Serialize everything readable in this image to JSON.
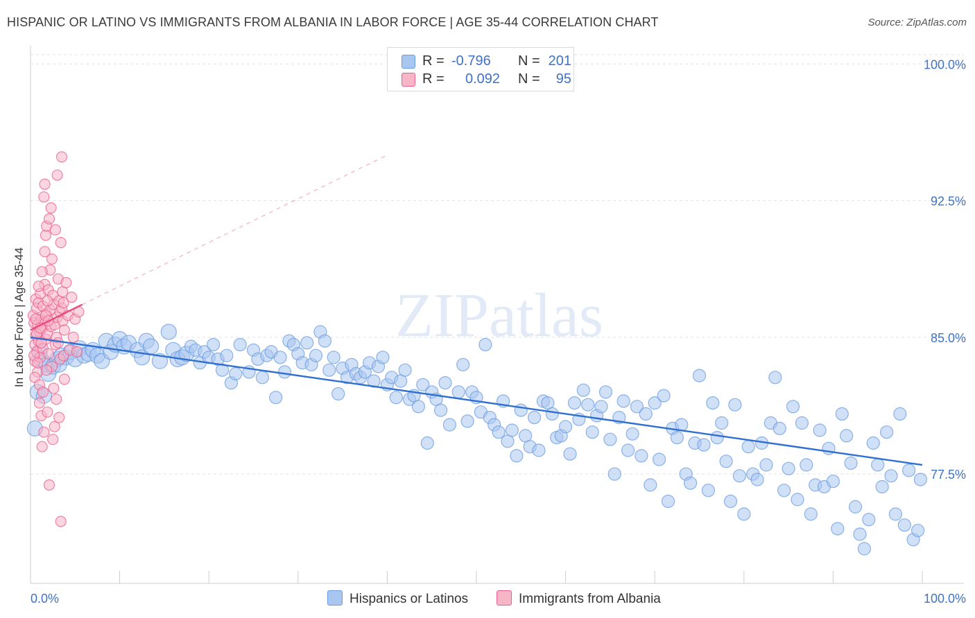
{
  "title": "HISPANIC OR LATINO VS IMMIGRANTS FROM ALBANIA IN LABOR FORCE | AGE 35-44 CORRELATION CHART",
  "source": "Source: ZipAtlas.com",
  "watermark": "ZIPatlas",
  "legend": {
    "rows": [
      {
        "r_label": "R =",
        "r_value": "-0.796",
        "n_label": "N =",
        "n_value": "201",
        "color": "#a9c6f0"
      },
      {
        "r_label": "R =",
        "r_value": "0.092",
        "n_label": "N =",
        "n_value": "95",
        "color": "#f7b5c8"
      }
    ]
  },
  "chart_data": {
    "type": "scatter",
    "xlabel": "",
    "ylabel": "In Labor Force | Age 35-44",
    "x_tick_labels": [
      "0.0%",
      "100.0%"
    ],
    "y_tick_labels": [
      "100.0%",
      "92.5%",
      "85.0%",
      "77.5%"
    ],
    "y_ticks": [
      100.0,
      92.5,
      85.0,
      77.5
    ],
    "xlim": [
      0,
      100
    ],
    "ylim": [
      71.5,
      101.0
    ],
    "grid": true,
    "series": [
      {
        "name": "Hispanics or Latinos",
        "color": "#6a9be0",
        "fill": "#a9c6f0",
        "trend": {
          "x": [
            0,
            100
          ],
          "y": [
            85.0,
            78.0
          ],
          "extended": false
        },
        "points": [
          [
            0.5,
            80.0
          ],
          [
            0.8,
            82.0
          ],
          [
            1.2,
            83.8
          ],
          [
            1.5,
            81.8
          ],
          [
            1.8,
            83.5
          ],
          [
            2.0,
            83.0
          ],
          [
            2.5,
            83.4
          ],
          [
            3.0,
            83.8
          ],
          [
            3.5,
            84.0
          ],
          [
            4.0,
            83.9
          ],
          [
            4.5,
            84.2
          ],
          [
            5.0,
            83.8
          ],
          [
            5.5,
            84.4
          ],
          [
            6.0,
            84.0
          ],
          [
            6.5,
            84.1
          ],
          [
            7.0,
            84.3
          ],
          [
            7.5,
            84.0
          ],
          [
            8.0,
            83.7
          ],
          [
            8.5,
            84.8
          ],
          [
            9.0,
            84.2
          ],
          [
            9.5,
            84.6
          ],
          [
            10.0,
            84.9
          ],
          [
            10.5,
            84.5
          ],
          [
            11.0,
            84.7
          ],
          [
            12.0,
            84.3
          ],
          [
            12.5,
            83.9
          ],
          [
            13.0,
            84.8
          ],
          [
            13.5,
            84.5
          ],
          [
            14.5,
            83.7
          ],
          [
            15.5,
            85.3
          ],
          [
            16.0,
            84.3
          ],
          [
            16.5,
            83.8
          ],
          [
            17.0,
            83.9
          ],
          [
            17.5,
            84.1
          ],
          [
            18.0,
            84.5
          ],
          [
            18.5,
            84.3
          ],
          [
            19.0,
            83.6
          ],
          [
            19.5,
            84.2
          ],
          [
            20.0,
            83.9
          ],
          [
            20.5,
            84.6
          ],
          [
            21.0,
            83.8
          ],
          [
            21.5,
            83.2
          ],
          [
            22.0,
            84.0
          ],
          [
            22.5,
            82.5
          ],
          [
            23.0,
            83.0
          ],
          [
            23.5,
            84.6
          ],
          [
            24.5,
            83.1
          ],
          [
            25.0,
            84.3
          ],
          [
            25.5,
            83.8
          ],
          [
            26.0,
            82.8
          ],
          [
            26.5,
            84.0
          ],
          [
            27.0,
            84.2
          ],
          [
            27.5,
            81.7
          ],
          [
            28.0,
            83.9
          ],
          [
            28.5,
            83.1
          ],
          [
            29.0,
            84.8
          ],
          [
            29.5,
            84.6
          ],
          [
            30.0,
            84.1
          ],
          [
            30.5,
            83.6
          ],
          [
            31.0,
            84.7
          ],
          [
            31.5,
            83.5
          ],
          [
            32.0,
            84.0
          ],
          [
            32.5,
            85.3
          ],
          [
            33.0,
            84.8
          ],
          [
            33.5,
            83.2
          ],
          [
            34.0,
            83.9
          ],
          [
            34.5,
            81.9
          ],
          [
            35.0,
            83.3
          ],
          [
            35.5,
            82.8
          ],
          [
            36.0,
            83.5
          ],
          [
            36.5,
            83.0
          ],
          [
            37.0,
            82.8
          ],
          [
            37.5,
            83.1
          ],
          [
            38.0,
            83.6
          ],
          [
            38.5,
            82.6
          ],
          [
            39.0,
            83.4
          ],
          [
            39.5,
            83.9
          ],
          [
            40.0,
            82.4
          ],
          [
            40.5,
            82.8
          ],
          [
            41.0,
            81.7
          ],
          [
            41.5,
            82.6
          ],
          [
            42.0,
            83.2
          ],
          [
            42.5,
            81.6
          ],
          [
            43.0,
            81.8
          ],
          [
            43.5,
            81.2
          ],
          [
            44.0,
            82.4
          ],
          [
            44.5,
            79.2
          ],
          [
            45.0,
            82.0
          ],
          [
            45.5,
            81.6
          ],
          [
            46.0,
            81.0
          ],
          [
            46.5,
            82.5
          ],
          [
            47.0,
            80.2
          ],
          [
            48.0,
            82.0
          ],
          [
            48.5,
            83.5
          ],
          [
            49.0,
            80.4
          ],
          [
            49.5,
            82.0
          ],
          [
            50.0,
            81.7
          ],
          [
            50.5,
            80.9
          ],
          [
            51.0,
            84.6
          ],
          [
            51.5,
            80.6
          ],
          [
            52.0,
            80.2
          ],
          [
            52.5,
            79.8
          ],
          [
            53.0,
            81.5
          ],
          [
            53.5,
            79.3
          ],
          [
            54.0,
            79.9
          ],
          [
            54.5,
            78.5
          ],
          [
            55.0,
            81.0
          ],
          [
            55.5,
            79.6
          ],
          [
            56.0,
            79.0
          ],
          [
            56.5,
            80.6
          ],
          [
            57.0,
            78.8
          ],
          [
            57.5,
            81.5
          ],
          [
            58.0,
            81.4
          ],
          [
            58.5,
            80.8
          ],
          [
            59.0,
            79.5
          ],
          [
            59.5,
            79.6
          ],
          [
            60.0,
            80.1
          ],
          [
            60.5,
            78.6
          ],
          [
            61.0,
            81.4
          ],
          [
            61.5,
            80.5
          ],
          [
            62.0,
            82.1
          ],
          [
            62.5,
            81.3
          ],
          [
            63.0,
            79.8
          ],
          [
            63.5,
            80.7
          ],
          [
            64.0,
            81.2
          ],
          [
            64.5,
            82.0
          ],
          [
            65.0,
            79.4
          ],
          [
            65.5,
            77.5
          ],
          [
            66.0,
            80.6
          ],
          [
            66.5,
            81.5
          ],
          [
            67.0,
            78.8
          ],
          [
            67.5,
            79.7
          ],
          [
            68.0,
            81.2
          ],
          [
            68.5,
            78.5
          ],
          [
            69.0,
            80.8
          ],
          [
            69.5,
            76.9
          ],
          [
            70.0,
            81.4
          ],
          [
            70.5,
            78.3
          ],
          [
            71.0,
            81.8
          ],
          [
            71.5,
            76.0
          ],
          [
            72.0,
            80.0
          ],
          [
            72.5,
            79.5
          ],
          [
            73.0,
            80.2
          ],
          [
            73.5,
            77.5
          ],
          [
            74.0,
            77.0
          ],
          [
            74.5,
            79.2
          ],
          [
            75.0,
            82.9
          ],
          [
            75.5,
            79.1
          ],
          [
            76.0,
            76.6
          ],
          [
            76.5,
            81.4
          ],
          [
            77.0,
            79.5
          ],
          [
            77.5,
            80.3
          ],
          [
            78.0,
            78.2
          ],
          [
            78.5,
            76.0
          ],
          [
            79.0,
            81.3
          ],
          [
            79.5,
            77.4
          ],
          [
            80.0,
            75.3
          ],
          [
            80.5,
            79.0
          ],
          [
            81.0,
            77.5
          ],
          [
            81.5,
            77.2
          ],
          [
            82.0,
            79.2
          ],
          [
            82.5,
            78.0
          ],
          [
            83.0,
            80.3
          ],
          [
            83.5,
            82.8
          ],
          [
            84.0,
            80.0
          ],
          [
            84.5,
            76.6
          ],
          [
            85.0,
            77.8
          ],
          [
            85.5,
            81.2
          ],
          [
            86.0,
            76.1
          ],
          [
            86.5,
            80.3
          ],
          [
            87.0,
            78.0
          ],
          [
            87.5,
            75.3
          ],
          [
            88.0,
            76.9
          ],
          [
            88.5,
            79.9
          ],
          [
            89.0,
            76.8
          ],
          [
            89.5,
            78.9
          ],
          [
            90.0,
            77.1
          ],
          [
            90.5,
            74.5
          ],
          [
            91.0,
            80.8
          ],
          [
            91.5,
            79.6
          ],
          [
            92.0,
            78.1
          ],
          [
            92.5,
            75.7
          ],
          [
            93.0,
            74.2
          ],
          [
            93.5,
            73.4
          ],
          [
            94.0,
            75.0
          ],
          [
            94.5,
            79.2
          ],
          [
            95.0,
            78.0
          ],
          [
            95.5,
            76.8
          ],
          [
            96.0,
            79.8
          ],
          [
            96.5,
            77.4
          ],
          [
            97.0,
            75.3
          ],
          [
            97.5,
            80.8
          ],
          [
            98.0,
            74.7
          ],
          [
            98.5,
            77.7
          ],
          [
            99.0,
            73.9
          ],
          [
            99.5,
            74.4
          ],
          [
            99.8,
            77.2
          ],
          [
            1.0,
            84.2
          ],
          [
            3.2,
            83.5
          ]
        ]
      },
      {
        "name": "Immigrants from Albania",
        "color": "#ea5f8c",
        "fill": "#f7b5c8",
        "trend": {
          "x": [
            0,
            5.8
          ],
          "y": [
            85.4,
            86.8
          ],
          "extended": true,
          "extended_to": [
            40,
            95.0
          ]
        },
        "points": [
          [
            0.3,
            86.2
          ],
          [
            0.4,
            85.8
          ],
          [
            0.5,
            84.6
          ],
          [
            0.5,
            83.7
          ],
          [
            0.6,
            87.1
          ],
          [
            0.6,
            85.1
          ],
          [
            0.7,
            86.6
          ],
          [
            0.7,
            84.2
          ],
          [
            0.8,
            85.7
          ],
          [
            0.8,
            83.1
          ],
          [
            0.9,
            86.9
          ],
          [
            0.9,
            84.8
          ],
          [
            1.0,
            85.3
          ],
          [
            1.0,
            81.4
          ],
          [
            1.1,
            87.4
          ],
          [
            1.1,
            83.9
          ],
          [
            1.2,
            86.0
          ],
          [
            1.2,
            80.7
          ],
          [
            1.3,
            85.5
          ],
          [
            1.3,
            79.0
          ],
          [
            1.4,
            86.7
          ],
          [
            1.4,
            84.4
          ],
          [
            1.5,
            92.7
          ],
          [
            1.5,
            85.9
          ],
          [
            1.6,
            93.4
          ],
          [
            1.6,
            87.9
          ],
          [
            1.7,
            90.6
          ],
          [
            1.7,
            84.9
          ],
          [
            1.8,
            91.1
          ],
          [
            1.8,
            86.3
          ],
          [
            1.9,
            85.2
          ],
          [
            1.9,
            80.9
          ],
          [
            2.0,
            87.6
          ],
          [
            2.0,
            84.1
          ],
          [
            2.1,
            91.5
          ],
          [
            2.1,
            76.9
          ],
          [
            2.2,
            88.7
          ],
          [
            2.2,
            86.5
          ],
          [
            2.3,
            92.1
          ],
          [
            2.3,
            85.6
          ],
          [
            2.4,
            89.3
          ],
          [
            2.4,
            83.4
          ],
          [
            2.5,
            87.3
          ],
          [
            2.5,
            79.4
          ],
          [
            2.6,
            86.8
          ],
          [
            2.6,
            82.2
          ],
          [
            2.7,
            85.7
          ],
          [
            2.7,
            80.1
          ],
          [
            2.8,
            90.9
          ],
          [
            2.8,
            84.6
          ],
          [
            2.9,
            85.0
          ],
          [
            2.9,
            81.6
          ],
          [
            3.0,
            93.9
          ],
          [
            3.0,
            86.1
          ],
          [
            3.1,
            88.2
          ],
          [
            3.1,
            84.7
          ],
          [
            3.2,
            87.0
          ],
          [
            3.2,
            80.6
          ],
          [
            3.3,
            86.4
          ],
          [
            3.3,
            83.8
          ],
          [
            3.4,
            90.2
          ],
          [
            3.4,
            74.9
          ],
          [
            3.5,
            94.9
          ],
          [
            3.5,
            86.6
          ],
          [
            3.6,
            85.9
          ],
          [
            3.6,
            87.5
          ],
          [
            3.7,
            86.9
          ],
          [
            3.7,
            84.0
          ],
          [
            3.8,
            85.4
          ],
          [
            3.8,
            82.7
          ],
          [
            4.0,
            88.0
          ],
          [
            4.2,
            86.2
          ],
          [
            4.4,
            84.3
          ],
          [
            4.6,
            87.2
          ],
          [
            4.8,
            85.0
          ],
          [
            5.0,
            86.0
          ],
          [
            5.2,
            84.2
          ],
          [
            5.4,
            86.4
          ],
          [
            0.4,
            84.0
          ],
          [
            0.5,
            82.8
          ],
          [
            0.6,
            86.0
          ],
          [
            0.7,
            85.2
          ],
          [
            0.8,
            83.6
          ],
          [
            0.9,
            87.8
          ],
          [
            1.0,
            82.4
          ],
          [
            1.1,
            85.5
          ],
          [
            1.2,
            84.7
          ],
          [
            1.3,
            88.6
          ],
          [
            1.4,
            82.0
          ],
          [
            1.5,
            79.8
          ],
          [
            1.6,
            89.7
          ],
          [
            1.7,
            86.2
          ],
          [
            1.8,
            83.2
          ],
          [
            1.9,
            87.0
          ],
          [
            2.0,
            85.9
          ]
        ]
      }
    ]
  },
  "bottom_legend": [
    {
      "label": "Hispanics or Latinos",
      "color": "#a9c6f0",
      "border": "#6a9be0"
    },
    {
      "label": "Immigrants from Albania",
      "color": "#f7b5c8",
      "border": "#ea5f8c"
    }
  ]
}
